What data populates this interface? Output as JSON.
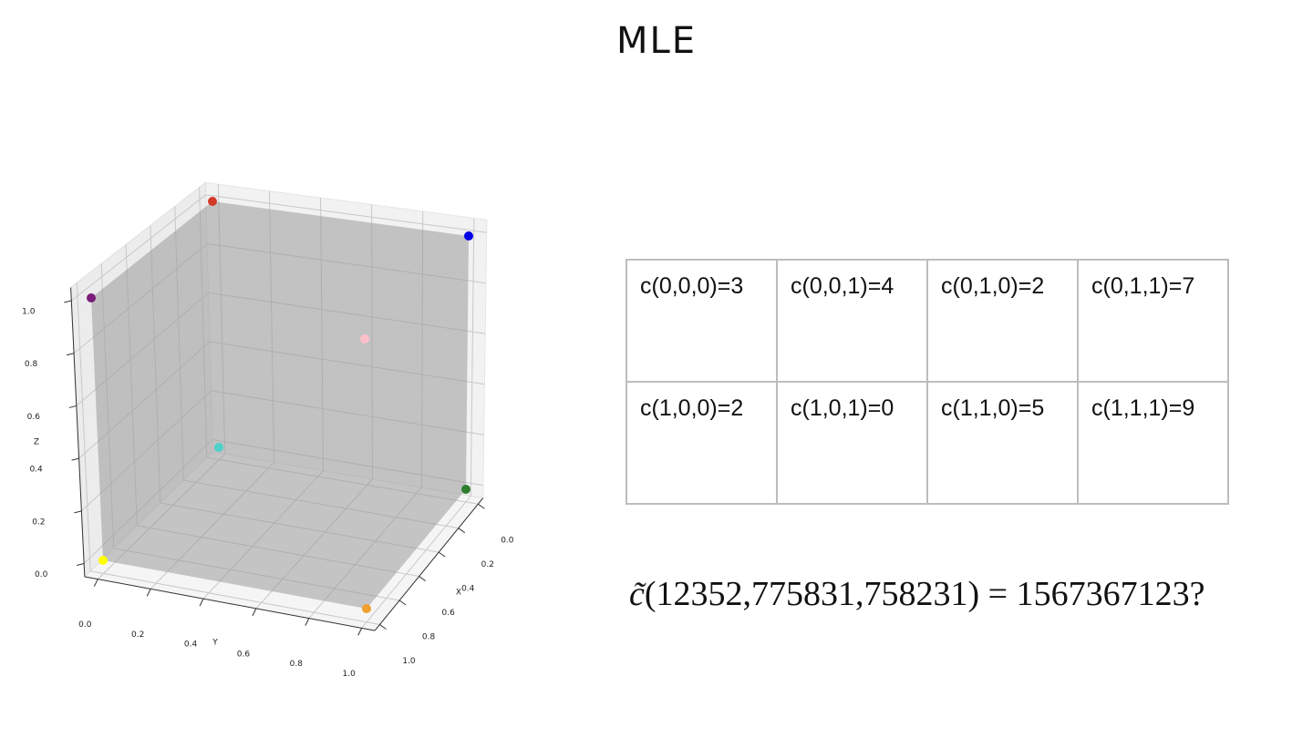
{
  "title": "MLE",
  "chart_data": {
    "type": "scatter3d",
    "x": [
      0,
      0,
      1,
      1,
      0,
      0,
      1,
      1
    ],
    "y": [
      0,
      1,
      0,
      1,
      0,
      1,
      0,
      1
    ],
    "z": [
      1,
      1,
      1,
      1,
      0,
      0,
      0,
      0
    ],
    "colors": [
      "#d33a28",
      "#0000e6",
      "#7a1c7a",
      "#ffc0cb",
      "#4ecfca",
      "#2f7d2f",
      "#ffff00",
      "#f0a030"
    ],
    "xlabel": "X",
    "ylabel": "Y",
    "zlabel": "Z",
    "xlim": [
      -0.05,
      1.05
    ],
    "ylim": [
      -0.05,
      1.05
    ],
    "zlim": [
      -0.05,
      1.05
    ],
    "xticks": [
      {
        "value": 0,
        "label": "0.0"
      },
      {
        "value": 0.2,
        "label": "0.2"
      },
      {
        "value": 0.4,
        "label": "0.4"
      },
      {
        "value": 0.6,
        "label": "0.6"
      },
      {
        "value": 0.8,
        "label": "0.8"
      },
      {
        "value": 1,
        "label": "1.0"
      }
    ],
    "yticks": [
      {
        "value": 0,
        "label": "0.0"
      },
      {
        "value": 0.2,
        "label": "0.2"
      },
      {
        "value": 0.4,
        "label": "0.4"
      },
      {
        "value": 0.6,
        "label": "0.6"
      },
      {
        "value": 0.8,
        "label": "0.8"
      },
      {
        "value": 1,
        "label": "1.0"
      }
    ],
    "zticks": [
      {
        "value": 0,
        "label": "0.0"
      },
      {
        "value": 0.2,
        "label": "0.2"
      },
      {
        "value": 0.4,
        "label": "0.4"
      },
      {
        "value": 0.6,
        "label": "0.6"
      },
      {
        "value": 0.8,
        "label": "0.8"
      },
      {
        "value": 1,
        "label": "1.0"
      }
    ],
    "grid": true
  },
  "table": {
    "rows": [
      [
        "c(0,0,0)=3",
        "c(0,0,1)=4",
        "c(0,1,0)=2",
        "c(0,1,1)=7"
      ],
      [
        "c(1,0,0)=2",
        "c(1,0,1)=0",
        "c(1,1,0)=5",
        "c(1,1,1)=9"
      ]
    ]
  },
  "equation": {
    "symbol": "c̃",
    "text": "(12352,775831,758231) = 1567367123?"
  }
}
